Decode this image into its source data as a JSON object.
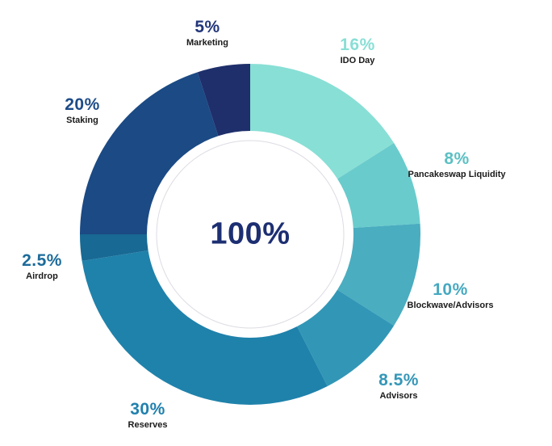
{
  "chart_data": {
    "type": "pie",
    "style": "donut",
    "center_label": "100%",
    "slices": [
      {
        "value": 16,
        "pct_label": "16%",
        "label": "IDO Day",
        "color": "#88dfd5",
        "pct_color": "#88dfd5"
      },
      {
        "value": 8,
        "pct_label": "8%",
        "label": "Pancakeswap Liquidity",
        "color": "#69cbcc",
        "pct_color": "#5cc0c4"
      },
      {
        "value": 10,
        "pct_label": "10%",
        "label": "Blockwave/Advisors",
        "color": "#4aadc0",
        "pct_color": "#46a9c0"
      },
      {
        "value": 8.5,
        "pct_label": "8.5%",
        "label": "Advisors",
        "color": "#3297b6",
        "pct_color": "#3597b8"
      },
      {
        "value": 30,
        "pct_label": "30%",
        "label": "Reserves",
        "color": "#1f82ab",
        "pct_color": "#2080ad"
      },
      {
        "value": 2.5,
        "pct_label": "2.5%",
        "label": "Airdrop",
        "color": "#186994",
        "pct_color": "#1c6b9a"
      },
      {
        "value": 20,
        "pct_label": "20%",
        "label": "Staking",
        "color": "#1b4a84",
        "pct_color": "#1d4c88"
      },
      {
        "value": 5,
        "pct_label": "5%",
        "label": "Marketing",
        "color": "#1f2f6b",
        "pct_color": "#22367a"
      }
    ]
  }
}
